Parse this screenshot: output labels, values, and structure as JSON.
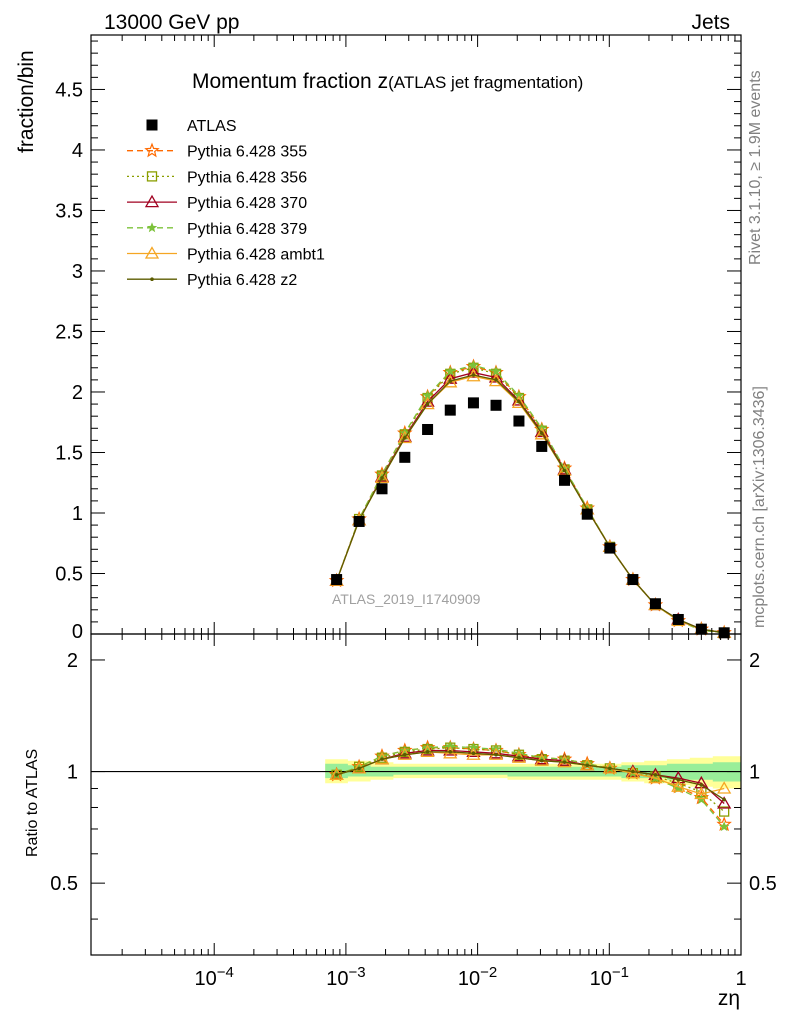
{
  "header": {
    "left": "13000 GeV pp",
    "right": "Jets"
  },
  "side_labels": {
    "rivet": "Rivet 3.1.10, ≥ 1.9M events",
    "mcplots": "mcplots.cern.ch [arXiv:1306.3436]"
  },
  "watermark": "ATLAS_2019_I1740909",
  "chart_data": [
    {
      "type": "scatter",
      "panel": "main",
      "title_main": "Momentum fraction z",
      "title_sub": "(ATLAS jet fragmentation)",
      "ylabel": "fraction/bin",
      "xlabel": "zη",
      "x_scale": "log",
      "xlim": [
        1.16e-05,
        1.0
      ],
      "ylim": [
        0,
        4.95
      ],
      "yticks": [
        0.5,
        1,
        1.5,
        2,
        2.5,
        3,
        3.5,
        4,
        4.5
      ],
      "ytick_labels": [
        "0.5",
        "1",
        "1.5",
        "2",
        "2.5",
        "3",
        "3.5",
        "4",
        "4.5"
      ],
      "ytick_zero_label": "0",
      "x": [
        0.00085,
        0.00126,
        0.00188,
        0.0028,
        0.00417,
        0.0062,
        0.0093,
        0.0138,
        0.0206,
        0.0307,
        0.0457,
        0.068,
        0.101,
        0.151,
        0.224,
        0.334,
        0.5,
        0.745
      ],
      "series": [
        {
          "name": "ATLAS",
          "color": "#000000",
          "marker": "square-filled",
          "line": "none",
          "values": [
            0.45,
            0.93,
            1.2,
            1.46,
            1.69,
            1.85,
            1.91,
            1.89,
            1.76,
            1.55,
            1.27,
            0.99,
            0.71,
            0.45,
            0.25,
            0.12,
            0.04,
            0.01
          ]
        },
        {
          "name": "Pythia 6.428 355",
          "color": "#ff6a00",
          "marker": "star-open",
          "line": "dashed",
          "values": [
            0.44,
            0.95,
            1.32,
            1.66,
            1.96,
            2.16,
            2.21,
            2.16,
            1.96,
            1.69,
            1.37,
            1.04,
            0.72,
            0.45,
            0.24,
            0.11,
            0.04,
            0.01
          ]
        },
        {
          "name": "Pythia 6.428 356",
          "color": "#8a9e00",
          "marker": "square-open",
          "line": "dotted",
          "values": [
            0.44,
            0.95,
            1.31,
            1.65,
            1.95,
            2.15,
            2.2,
            2.15,
            1.95,
            1.68,
            1.36,
            1.03,
            0.72,
            0.45,
            0.24,
            0.11,
            0.04,
            0.01
          ]
        },
        {
          "name": "Pythia 6.428 370",
          "color": "#a00020",
          "marker": "triangle-open",
          "line": "solid",
          "values": [
            0.44,
            0.94,
            1.3,
            1.63,
            1.92,
            2.11,
            2.16,
            2.12,
            1.93,
            1.67,
            1.36,
            1.03,
            0.72,
            0.45,
            0.24,
            0.12,
            0.04,
            0.01
          ]
        },
        {
          "name": "Pythia 6.428 379",
          "color": "#7cc23a",
          "marker": "star-filled",
          "line": "dashed",
          "values": [
            0.44,
            0.95,
            1.32,
            1.66,
            1.97,
            2.17,
            2.22,
            2.17,
            1.97,
            1.7,
            1.37,
            1.04,
            0.72,
            0.45,
            0.24,
            0.11,
            0.03,
            0.01
          ]
        },
        {
          "name": "Pythia 6.428 ambt1",
          "color": "#f5a623",
          "marker": "triangle-open",
          "line": "solid",
          "values": [
            0.44,
            0.94,
            1.29,
            1.62,
            1.9,
            2.08,
            2.13,
            2.09,
            1.91,
            1.65,
            1.35,
            1.03,
            0.72,
            0.45,
            0.24,
            0.11,
            0.04,
            0.01
          ]
        },
        {
          "name": "Pythia 6.428 z2",
          "color": "#5c5c00",
          "marker": "dot",
          "line": "solid",
          "values": [
            0.44,
            0.94,
            1.29,
            1.62,
            1.9,
            2.09,
            2.14,
            2.1,
            1.92,
            1.66,
            1.35,
            1.03,
            0.72,
            0.45,
            0.24,
            0.12,
            0.04,
            0.01
          ]
        }
      ],
      "legend_position": "top-left"
    },
    {
      "type": "line",
      "panel": "ratio",
      "ylabel": "Ratio to ATLAS",
      "x_scale": "log",
      "xlim": [
        1.16e-05,
        1.0
      ],
      "ylim": [
        0.32,
        2.35
      ],
      "yticks": [
        0.5,
        1,
        2
      ],
      "ytick_labels": [
        "0.5",
        "1",
        "2"
      ],
      "xticks": [
        0.0001,
        0.001,
        0.01,
        0.1,
        1
      ],
      "xtick_labels": [
        "10−4",
        "10−3",
        "10−2",
        "10−1",
        "1"
      ],
      "x": [
        0.00085,
        0.00126,
        0.00188,
        0.0028,
        0.00417,
        0.0062,
        0.0093,
        0.0138,
        0.0206,
        0.0307,
        0.0457,
        0.068,
        0.101,
        0.151,
        0.224,
        0.334,
        0.5,
        0.745
      ],
      "band_yellow": {
        "lo": [
          0.93,
          0.94,
          0.95,
          0.96,
          0.96,
          0.96,
          0.96,
          0.96,
          0.95,
          0.95,
          0.95,
          0.95,
          0.95,
          0.94,
          0.93,
          0.92,
          0.91,
          0.9
        ],
        "hi": [
          1.08,
          1.07,
          1.06,
          1.05,
          1.05,
          1.05,
          1.05,
          1.05,
          1.05,
          1.05,
          1.05,
          1.05,
          1.05,
          1.06,
          1.07,
          1.08,
          1.09,
          1.1
        ]
      },
      "band_green": {
        "lo": [
          0.96,
          0.97,
          0.97,
          0.98,
          0.98,
          0.98,
          0.98,
          0.98,
          0.97,
          0.97,
          0.97,
          0.97,
          0.97,
          0.96,
          0.96,
          0.95,
          0.95,
          0.94
        ],
        "hi": [
          1.05,
          1.04,
          1.03,
          1.03,
          1.03,
          1.03,
          1.03,
          1.03,
          1.03,
          1.03,
          1.03,
          1.03,
          1.03,
          1.04,
          1.04,
          1.05,
          1.05,
          1.06
        ]
      },
      "series": [
        {
          "name": "Pythia 6.428 355",
          "color": "#ff6a00",
          "line": "dashed",
          "marker": "star-open",
          "values": [
            0.98,
            1.03,
            1.1,
            1.14,
            1.16,
            1.16,
            1.15,
            1.14,
            1.11,
            1.09,
            1.08,
            1.05,
            1.02,
            0.99,
            0.96,
            0.91,
            0.85,
            0.72
          ]
        },
        {
          "name": "Pythia 6.428 356",
          "color": "#8a9e00",
          "line": "dotted",
          "marker": "square-open",
          "values": [
            0.98,
            1.03,
            1.09,
            1.13,
            1.15,
            1.16,
            1.15,
            1.14,
            1.11,
            1.08,
            1.07,
            1.04,
            1.02,
            0.99,
            0.97,
            0.93,
            0.88,
            0.78
          ]
        },
        {
          "name": "Pythia 6.428 370",
          "color": "#a00020",
          "line": "solid",
          "marker": "triangle-open",
          "values": [
            0.98,
            1.02,
            1.08,
            1.12,
            1.14,
            1.14,
            1.13,
            1.12,
            1.1,
            1.08,
            1.07,
            1.04,
            1.02,
            1.0,
            0.98,
            0.96,
            0.93,
            0.82
          ]
        },
        {
          "name": "Pythia 6.428 379",
          "color": "#7cc23a",
          "line": "dashed",
          "marker": "star-filled",
          "values": [
            0.98,
            1.03,
            1.1,
            1.14,
            1.16,
            1.17,
            1.16,
            1.15,
            1.12,
            1.09,
            1.08,
            1.05,
            1.02,
            0.99,
            0.96,
            0.9,
            0.84,
            0.71
          ]
        },
        {
          "name": "Pythia 6.428 ambt1",
          "color": "#f5a623",
          "line": "solid",
          "marker": "triangle-open",
          "values": [
            0.98,
            1.02,
            1.08,
            1.11,
            1.13,
            1.12,
            1.11,
            1.11,
            1.09,
            1.07,
            1.06,
            1.04,
            1.02,
            0.99,
            0.96,
            0.91,
            0.87,
            0.9
          ]
        },
        {
          "name": "Pythia 6.428 z2",
          "color": "#5c5c00",
          "line": "solid",
          "marker": "dot",
          "values": [
            0.98,
            1.02,
            1.08,
            1.11,
            1.13,
            1.13,
            1.12,
            1.11,
            1.09,
            1.07,
            1.06,
            1.04,
            1.02,
            1.0,
            0.98,
            0.95,
            0.92,
            0.84
          ]
        }
      ]
    }
  ]
}
